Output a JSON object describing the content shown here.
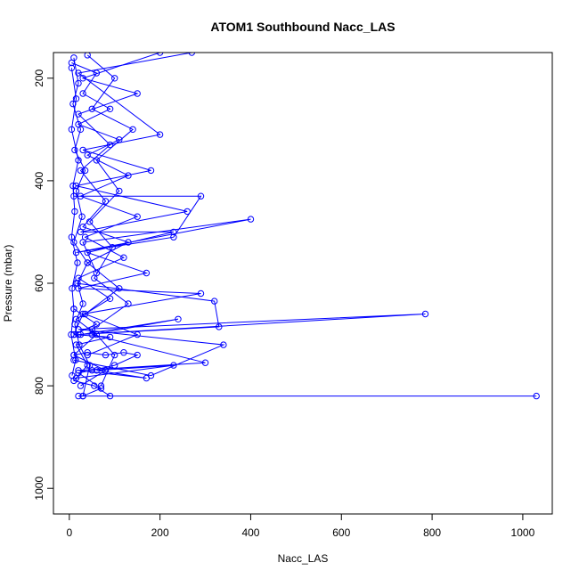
{
  "chart_data": {
    "type": "line",
    "title": "ATOM1 Southbound Nacc_LAS",
    "xlabel": "Nacc_LAS",
    "ylabel": "Pressure (mbar)",
    "xlim": [
      -35,
      1065
    ],
    "ylim": [
      1050,
      150
    ],
    "y_reversed": true,
    "x_ticks": [
      0,
      200,
      400,
      600,
      800,
      1000
    ],
    "y_ticks": [
      200,
      400,
      600,
      800,
      1000
    ],
    "grid": false,
    "legend": "none",
    "series_color": "#0000ff",
    "marker": "open-circle",
    "series": [
      {
        "values": [
          {
            "x": 10,
            "y": 160
          },
          {
            "x": 20,
            "y": 210
          },
          {
            "x": 8,
            "y": 250
          },
          {
            "x": 25,
            "y": 300
          },
          {
            "x": 12,
            "y": 340
          },
          {
            "x": 35,
            "y": 380
          },
          {
            "x": 15,
            "y": 420
          },
          {
            "x": 28,
            "y": 470
          },
          {
            "x": 10,
            "y": 520
          },
          {
            "x": 40,
            "y": 560
          },
          {
            "x": 18,
            "y": 600
          },
          {
            "x": 30,
            "y": 640
          },
          {
            "x": 12,
            "y": 680
          },
          {
            "x": 22,
            "y": 720
          },
          {
            "x": 45,
            "y": 760
          },
          {
            "x": 30,
            "y": 820
          }
        ]
      },
      {
        "values": [
          {
            "x": 5,
            "y": 170
          },
          {
            "x": 60,
            "y": 190
          },
          {
            "x": 30,
            "y": 230
          },
          {
            "x": 90,
            "y": 260
          },
          {
            "x": 20,
            "y": 290
          },
          {
            "x": 110,
            "y": 320
          },
          {
            "x": 40,
            "y": 350
          },
          {
            "x": 130,
            "y": 390
          },
          {
            "x": 25,
            "y": 430
          },
          {
            "x": 150,
            "y": 470
          },
          {
            "x": 35,
            "y": 510
          },
          {
            "x": 120,
            "y": 550
          },
          {
            "x": 20,
            "y": 590
          },
          {
            "x": 90,
            "y": 630
          },
          {
            "x": 15,
            "y": 670
          },
          {
            "x": 60,
            "y": 700
          },
          {
            "x": 10,
            "y": 740
          },
          {
            "x": 80,
            "y": 770
          },
          {
            "x": 25,
            "y": 800
          }
        ]
      },
      {
        "values": [
          {
            "x": 270,
            "y": 150
          },
          {
            "x": 20,
            "y": 190
          },
          {
            "x": 200,
            "y": 310
          },
          {
            "x": 30,
            "y": 340
          },
          {
            "x": 180,
            "y": 380
          },
          {
            "x": 15,
            "y": 410
          },
          {
            "x": 260,
            "y": 460
          },
          {
            "x": 25,
            "y": 500
          },
          {
            "x": 230,
            "y": 500
          },
          {
            "x": 40,
            "y": 540
          },
          {
            "x": 170,
            "y": 580
          },
          {
            "x": 20,
            "y": 610
          },
          {
            "x": 290,
            "y": 620
          },
          {
            "x": 30,
            "y": 660
          },
          {
            "x": 10,
            "y": 700
          }
        ]
      },
      {
        "values": [
          {
            "x": 10,
            "y": 430
          },
          {
            "x": 290,
            "y": 430
          },
          {
            "x": 230,
            "y": 510
          },
          {
            "x": 15,
            "y": 540
          },
          {
            "x": 400,
            "y": 475
          },
          {
            "x": 30,
            "y": 520
          },
          {
            "x": 60,
            "y": 580
          }
        ]
      },
      {
        "values": [
          {
            "x": 15,
            "y": 600
          },
          {
            "x": 320,
            "y": 635
          },
          {
            "x": 330,
            "y": 685
          },
          {
            "x": 20,
            "y": 700
          },
          {
            "x": 785,
            "y": 660
          },
          {
            "x": 20,
            "y": 690
          },
          {
            "x": 340,
            "y": 720
          },
          {
            "x": 180,
            "y": 780
          },
          {
            "x": 10,
            "y": 750
          }
        ]
      },
      {
        "values": [
          {
            "x": 25,
            "y": 700
          },
          {
            "x": 240,
            "y": 670
          },
          {
            "x": 50,
            "y": 700
          },
          {
            "x": 300,
            "y": 755
          },
          {
            "x": 20,
            "y": 770
          },
          {
            "x": 170,
            "y": 785
          },
          {
            "x": 60,
            "y": 770
          },
          {
            "x": 230,
            "y": 760
          },
          {
            "x": 15,
            "y": 785
          }
        ]
      },
      {
        "values": [
          {
            "x": 10,
            "y": 740
          },
          {
            "x": 40,
            "y": 735
          },
          {
            "x": 80,
            "y": 740
          },
          {
            "x": 120,
            "y": 735
          },
          {
            "x": 150,
            "y": 740
          },
          {
            "x": 100,
            "y": 760
          },
          {
            "x": 50,
            "y": 770
          },
          {
            "x": 20,
            "y": 775
          },
          {
            "x": 70,
            "y": 805
          },
          {
            "x": 30,
            "y": 820
          }
        ]
      },
      {
        "values": [
          {
            "x": 20,
            "y": 820
          },
          {
            "x": 1030,
            "y": 820
          }
        ]
      },
      {
        "values": [
          {
            "x": 5,
            "y": 180
          },
          {
            "x": 15,
            "y": 240
          },
          {
            "x": 5,
            "y": 300
          },
          {
            "x": 20,
            "y": 360
          },
          {
            "x": 8,
            "y": 410
          },
          {
            "x": 12,
            "y": 460
          },
          {
            "x": 5,
            "y": 510
          },
          {
            "x": 18,
            "y": 560
          },
          {
            "x": 6,
            "y": 610
          },
          {
            "x": 10,
            "y": 650
          },
          {
            "x": 4,
            "y": 700
          },
          {
            "x": 14,
            "y": 750
          },
          {
            "x": 6,
            "y": 780
          }
        ]
      },
      {
        "values": [
          {
            "x": 40,
            "y": 155
          },
          {
            "x": 100,
            "y": 200
          },
          {
            "x": 50,
            "y": 260
          },
          {
            "x": 140,
            "y": 300
          },
          {
            "x": 60,
            "y": 360
          },
          {
            "x": 110,
            "y": 420
          },
          {
            "x": 45,
            "y": 480
          },
          {
            "x": 95,
            "y": 530
          },
          {
            "x": 55,
            "y": 590
          },
          {
            "x": 130,
            "y": 640
          },
          {
            "x": 50,
            "y": 690
          },
          {
            "x": 100,
            "y": 740
          },
          {
            "x": 70,
            "y": 800
          }
        ]
      },
      {
        "values": [
          {
            "x": 200,
            "y": 150
          },
          {
            "x": 30,
            "y": 200
          },
          {
            "x": 150,
            "y": 230
          },
          {
            "x": 20,
            "y": 270
          },
          {
            "x": 90,
            "y": 330
          },
          {
            "x": 25,
            "y": 380
          },
          {
            "x": 80,
            "y": 440
          },
          {
            "x": 30,
            "y": 490
          },
          {
            "x": 130,
            "y": 520
          },
          {
            "x": 40,
            "y": 560
          },
          {
            "x": 110,
            "y": 610
          },
          {
            "x": 35,
            "y": 660
          },
          {
            "x": 150,
            "y": 700
          },
          {
            "x": 40,
            "y": 740
          }
        ]
      },
      {
        "values": [
          {
            "x": 10,
            "y": 650
          },
          {
            "x": 60,
            "y": 680
          },
          {
            "x": 10,
            "y": 700
          },
          {
            "x": 90,
            "y": 705
          },
          {
            "x": 15,
            "y": 720
          },
          {
            "x": 40,
            "y": 760
          },
          {
            "x": 10,
            "y": 790
          },
          {
            "x": 55,
            "y": 800
          },
          {
            "x": 90,
            "y": 820
          }
        ]
      }
    ]
  }
}
